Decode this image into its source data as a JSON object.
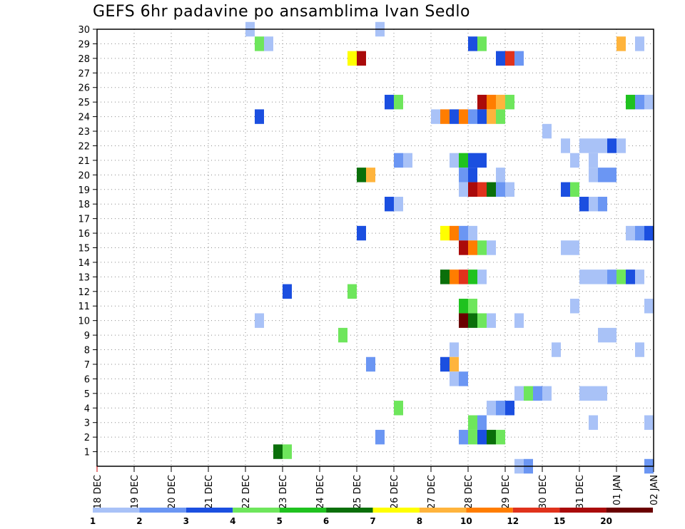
{
  "chart_data": {
    "type": "heatmap",
    "title": "GEFS 6hr padavine po ansamblima Ivan Sedlo",
    "xlabel": "",
    "ylabel": "",
    "x_tick_labels": [
      "18 DEC",
      "19 DEC",
      "20 DEC",
      "21 DEC",
      "22 DEC",
      "23 DEC",
      "24 DEC",
      "25 DEC",
      "26 DEC",
      "27 DEC",
      "28 DEC",
      "29 DEC",
      "30 DEC",
      "31 DEC",
      "01 JAN",
      "02 JAN"
    ],
    "y_tick_labels": [
      "1",
      "2",
      "3",
      "4",
      "5",
      "6",
      "7",
      "8",
      "9",
      "10",
      "11",
      "12",
      "13",
      "14",
      "15",
      "16",
      "17",
      "18",
      "19",
      "20",
      "21",
      "22",
      "23",
      "24",
      "25",
      "26",
      "27",
      "28",
      "29",
      "30"
    ],
    "x_unit": "6h step index from 18 DEC 00 UTC",
    "ylim": [
      0,
      30
    ],
    "grid": true,
    "legend_placement": "bottom",
    "legend": {
      "labels": [
        "1",
        "2",
        "3",
        "4",
        "5",
        "6",
        "7",
        "8",
        "10",
        "12",
        "15",
        "20"
      ],
      "colors": [
        "#a9c2f7",
        "#6b96f3",
        "#1b4fe0",
        "#6ee65c",
        "#1fc21f",
        "#0a6f0a",
        "#ffff00",
        "#ffb43c",
        "#ff7d00",
        "#e0321c",
        "#aa0a0a",
        "#6a0000"
      ]
    },
    "cells": [
      {
        "m": 30,
        "t": 16,
        "v": 1
      },
      {
        "m": 30,
        "t": 30,
        "v": 1
      },
      {
        "m": 29,
        "t": 17,
        "v": 4
      },
      {
        "m": 29,
        "t": 18,
        "v": 1
      },
      {
        "m": 29,
        "t": 40,
        "v": 3
      },
      {
        "m": 29,
        "t": 41,
        "v": 4
      },
      {
        "m": 29,
        "t": 56,
        "v": 8
      },
      {
        "m": 29,
        "t": 58,
        "v": 1
      },
      {
        "m": 28,
        "t": 27,
        "v": 7
      },
      {
        "m": 28,
        "t": 28,
        "v": 15
      },
      {
        "m": 28,
        "t": 43,
        "v": 3
      },
      {
        "m": 28,
        "t": 44,
        "v": 12
      },
      {
        "m": 28,
        "t": 45,
        "v": 2
      },
      {
        "m": 25,
        "t": 31,
        "v": 3
      },
      {
        "m": 25,
        "t": 32,
        "v": 4
      },
      {
        "m": 25,
        "t": 41,
        "v": 15
      },
      {
        "m": 25,
        "t": 42,
        "v": 10
      },
      {
        "m": 25,
        "t": 43,
        "v": 8
      },
      {
        "m": 25,
        "t": 44,
        "v": 4
      },
      {
        "m": 25,
        "t": 57,
        "v": 5
      },
      {
        "m": 25,
        "t": 58,
        "v": 2
      },
      {
        "m": 25,
        "t": 59,
        "v": 1
      },
      {
        "m": 24,
        "t": 17,
        "v": 3
      },
      {
        "m": 24,
        "t": 36,
        "v": 1
      },
      {
        "m": 24,
        "t": 37,
        "v": 10
      },
      {
        "m": 24,
        "t": 38,
        "v": 3
      },
      {
        "m": 24,
        "t": 39,
        "v": 10
      },
      {
        "m": 24,
        "t": 40,
        "v": 2
      },
      {
        "m": 24,
        "t": 41,
        "v": 3
      },
      {
        "m": 24,
        "t": 42,
        "v": 8
      },
      {
        "m": 24,
        "t": 43,
        "v": 4
      },
      {
        "m": 23,
        "t": 48,
        "v": 1
      },
      {
        "m": 22,
        "t": 50,
        "v": 1
      },
      {
        "m": 22,
        "t": 52,
        "v": 1
      },
      {
        "m": 22,
        "t": 53,
        "v": 1
      },
      {
        "m": 22,
        "t": 54,
        "v": 1
      },
      {
        "m": 22,
        "t": 55,
        "v": 3
      },
      {
        "m": 22,
        "t": 56,
        "v": 1
      },
      {
        "m": 21,
        "t": 32,
        "v": 2
      },
      {
        "m": 21,
        "t": 33,
        "v": 1
      },
      {
        "m": 21,
        "t": 38,
        "v": 1
      },
      {
        "m": 21,
        "t": 39,
        "v": 5
      },
      {
        "m": 21,
        "t": 40,
        "v": 3
      },
      {
        "m": 21,
        "t": 41,
        "v": 3
      },
      {
        "m": 21,
        "t": 51,
        "v": 1
      },
      {
        "m": 21,
        "t": 53,
        "v": 1
      },
      {
        "m": 20,
        "t": 28,
        "v": 6
      },
      {
        "m": 20,
        "t": 29,
        "v": 8
      },
      {
        "m": 20,
        "t": 39,
        "v": 2
      },
      {
        "m": 20,
        "t": 40,
        "v": 3
      },
      {
        "m": 20,
        "t": 43,
        "v": 1
      },
      {
        "m": 20,
        "t": 53,
        "v": 1
      },
      {
        "m": 20,
        "t": 54,
        "v": 2
      },
      {
        "m": 20,
        "t": 55,
        "v": 2
      },
      {
        "m": 19,
        "t": 39,
        "v": 1
      },
      {
        "m": 19,
        "t": 40,
        "v": 15
      },
      {
        "m": 19,
        "t": 41,
        "v": 12
      },
      {
        "m": 19,
        "t": 42,
        "v": 6
      },
      {
        "m": 19,
        "t": 43,
        "v": 2
      },
      {
        "m": 19,
        "t": 44,
        "v": 1
      },
      {
        "m": 19,
        "t": 50,
        "v": 3
      },
      {
        "m": 19,
        "t": 51,
        "v": 4
      },
      {
        "m": 18,
        "t": 31,
        "v": 3
      },
      {
        "m": 18,
        "t": 32,
        "v": 1
      },
      {
        "m": 18,
        "t": 52,
        "v": 3
      },
      {
        "m": 18,
        "t": 53,
        "v": 1
      },
      {
        "m": 18,
        "t": 54,
        "v": 2
      },
      {
        "m": 16,
        "t": 28,
        "v": 3
      },
      {
        "m": 16,
        "t": 37,
        "v": 7
      },
      {
        "m": 16,
        "t": 38,
        "v": 10
      },
      {
        "m": 16,
        "t": 39,
        "v": 2
      },
      {
        "m": 16,
        "t": 40,
        "v": 1
      },
      {
        "m": 16,
        "t": 57,
        "v": 1
      },
      {
        "m": 16,
        "t": 58,
        "v": 2
      },
      {
        "m": 16,
        "t": 59,
        "v": 3
      },
      {
        "m": 15,
        "t": 39,
        "v": 15
      },
      {
        "m": 15,
        "t": 40,
        "v": 10
      },
      {
        "m": 15,
        "t": 41,
        "v": 4
      },
      {
        "m": 15,
        "t": 42,
        "v": 1
      },
      {
        "m": 15,
        "t": 50,
        "v": 1
      },
      {
        "m": 15,
        "t": 51,
        "v": 1
      },
      {
        "m": 13,
        "t": 37,
        "v": 6
      },
      {
        "m": 13,
        "t": 38,
        "v": 10
      },
      {
        "m": 13,
        "t": 39,
        "v": 12
      },
      {
        "m": 13,
        "t": 40,
        "v": 5
      },
      {
        "m": 13,
        "t": 41,
        "v": 1
      },
      {
        "m": 13,
        "t": 52,
        "v": 1
      },
      {
        "m": 13,
        "t": 53,
        "v": 1
      },
      {
        "m": 13,
        "t": 54,
        "v": 1
      },
      {
        "m": 13,
        "t": 55,
        "v": 2
      },
      {
        "m": 13,
        "t": 56,
        "v": 4
      },
      {
        "m": 13,
        "t": 57,
        "v": 3
      },
      {
        "m": 13,
        "t": 58,
        "v": 1
      },
      {
        "m": 12,
        "t": 20,
        "v": 3
      },
      {
        "m": 12,
        "t": 27,
        "v": 4
      },
      {
        "m": 11,
        "t": 39,
        "v": 5
      },
      {
        "m": 11,
        "t": 40,
        "v": 4
      },
      {
        "m": 11,
        "t": 51,
        "v": 1
      },
      {
        "m": 11,
        "t": 59,
        "v": 1
      },
      {
        "m": 10,
        "t": 17,
        "v": 1
      },
      {
        "m": 10,
        "t": 39,
        "v": 20
      },
      {
        "m": 10,
        "t": 40,
        "v": 6
      },
      {
        "m": 10,
        "t": 41,
        "v": 4
      },
      {
        "m": 10,
        "t": 42,
        "v": 1
      },
      {
        "m": 10,
        "t": 45,
        "v": 1
      },
      {
        "m": 9,
        "t": 26,
        "v": 4
      },
      {
        "m": 9,
        "t": 54,
        "v": 1
      },
      {
        "m": 9,
        "t": 55,
        "v": 1
      },
      {
        "m": 8,
        "t": 38,
        "v": 1
      },
      {
        "m": 8,
        "t": 49,
        "v": 1
      },
      {
        "m": 8,
        "t": 58,
        "v": 1
      },
      {
        "m": 7,
        "t": 29,
        "v": 2
      },
      {
        "m": 7,
        "t": 37,
        "v": 3
      },
      {
        "m": 7,
        "t": 38,
        "v": 8
      },
      {
        "m": 6,
        "t": 38,
        "v": 1
      },
      {
        "m": 6,
        "t": 39,
        "v": 2
      },
      {
        "m": 5,
        "t": 45,
        "v": 1
      },
      {
        "m": 5,
        "t": 46,
        "v": 4
      },
      {
        "m": 5,
        "t": 47,
        "v": 2
      },
      {
        "m": 5,
        "t": 48,
        "v": 1
      },
      {
        "m": 5,
        "t": 52,
        "v": 1
      },
      {
        "m": 5,
        "t": 53,
        "v": 1
      },
      {
        "m": 5,
        "t": 54,
        "v": 1
      },
      {
        "m": 4,
        "t": 32,
        "v": 4
      },
      {
        "m": 4,
        "t": 42,
        "v": 1
      },
      {
        "m": 4,
        "t": 43,
        "v": 2
      },
      {
        "m": 4,
        "t": 44,
        "v": 3
      },
      {
        "m": 3,
        "t": 40,
        "v": 4
      },
      {
        "m": 3,
        "t": 41,
        "v": 2
      },
      {
        "m": 3,
        "t": 53,
        "v": 1
      },
      {
        "m": 3,
        "t": 59,
        "v": 1
      },
      {
        "m": 2,
        "t": 30,
        "v": 2
      },
      {
        "m": 2,
        "t": 39,
        "v": 2
      },
      {
        "m": 2,
        "t": 40,
        "v": 4
      },
      {
        "m": 2,
        "t": 41,
        "v": 3
      },
      {
        "m": 2,
        "t": 42,
        "v": 6
      },
      {
        "m": 2,
        "t": 43,
        "v": 4
      },
      {
        "m": 1,
        "t": 19,
        "v": 6
      },
      {
        "m": 1,
        "t": 20,
        "v": 4
      },
      {
        "m": 0,
        "t": 45,
        "v": 1
      },
      {
        "m": 0,
        "t": 46,
        "v": 2
      },
      {
        "m": 0,
        "t": 59,
        "v": 2
      }
    ]
  }
}
